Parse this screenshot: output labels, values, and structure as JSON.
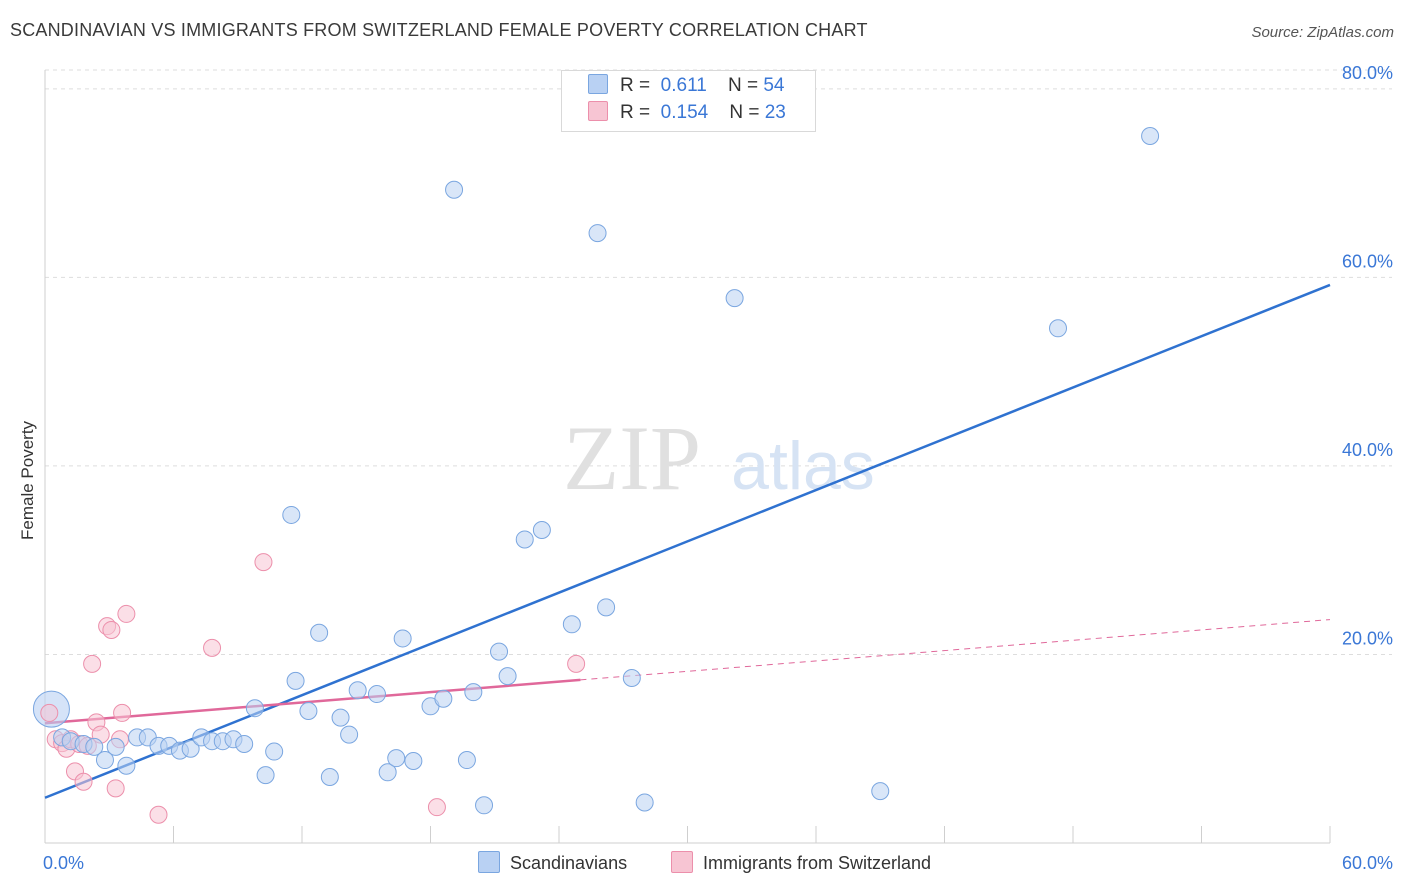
{
  "title": "SCANDINAVIAN VS IMMIGRANTS FROM SWITZERLAND FEMALE POVERTY CORRELATION CHART",
  "source": "Source: ZipAtlas.com",
  "watermark": {
    "zip": "ZIP",
    "atlas": "atlas"
  },
  "legend_top": [
    {
      "r_label": "R =",
      "r_value": "0.611",
      "n_label": "N =",
      "n_value": "54"
    },
    {
      "r_label": "R =",
      "r_value": "0.154",
      "n_label": "N =",
      "n_value": "23"
    }
  ],
  "legend_bottom": [
    "Scandinavians",
    "Immigrants from Switzerland"
  ],
  "colors": {
    "blue_fill": "#b9d1f3",
    "blue_stroke": "#7aa6e0",
    "blue_line": "#2f72d0",
    "pink_fill": "#f7c5d3",
    "pink_stroke": "#ec8fab",
    "pink_line": "#e0689a",
    "axis_text": "#3a77d6",
    "grid": "#dddddd"
  },
  "chart_data": {
    "type": "scatter",
    "title": "SCANDINAVIAN VS IMMIGRANTS FROM SWITZERLAND FEMALE POVERTY CORRELATION CHART",
    "xlabel": "",
    "ylabel": "Female Poverty",
    "xlim": [
      0,
      60
    ],
    "ylim": [
      0,
      82
    ],
    "x_tick_labels": [
      "0.0%",
      "60.0%"
    ],
    "y_ticks": [
      20,
      40,
      60,
      80
    ],
    "y_tick_labels": [
      "20.0%",
      "40.0%",
      "60.0%",
      "80.0%"
    ],
    "grid": true,
    "series": [
      {
        "name": "Scandinavians",
        "color": "#b9d1f3",
        "points": [
          [
            0.3,
            14.2
          ],
          [
            0.8,
            11.2
          ],
          [
            1.2,
            10.8
          ],
          [
            1.8,
            10.5
          ],
          [
            2.3,
            10.2
          ],
          [
            2.8,
            8.8
          ],
          [
            3.3,
            10.2
          ],
          [
            3.8,
            8.2
          ],
          [
            4.3,
            11.2
          ],
          [
            4.8,
            11.2
          ],
          [
            5.3,
            10.3
          ],
          [
            5.8,
            10.3
          ],
          [
            6.3,
            9.8
          ],
          [
            6.8,
            10.0
          ],
          [
            7.3,
            11.2
          ],
          [
            7.8,
            10.8
          ],
          [
            8.3,
            10.8
          ],
          [
            8.8,
            11.0
          ],
          [
            9.3,
            10.5
          ],
          [
            9.8,
            14.3
          ],
          [
            10.3,
            7.2
          ],
          [
            10.7,
            9.7
          ],
          [
            11.5,
            34.8
          ],
          [
            11.7,
            17.2
          ],
          [
            12.3,
            14.0
          ],
          [
            12.8,
            22.3
          ],
          [
            13.3,
            7.0
          ],
          [
            13.8,
            13.3
          ],
          [
            14.2,
            11.5
          ],
          [
            14.6,
            16.2
          ],
          [
            15.5,
            15.8
          ],
          [
            16.0,
            7.5
          ],
          [
            16.4,
            9.0
          ],
          [
            16.7,
            21.7
          ],
          [
            17.2,
            8.7
          ],
          [
            18.0,
            14.5
          ],
          [
            18.6,
            15.3
          ],
          [
            19.1,
            69.3
          ],
          [
            19.7,
            8.8
          ],
          [
            20.0,
            16.0
          ],
          [
            20.5,
            4.0
          ],
          [
            21.2,
            20.3
          ],
          [
            21.6,
            17.7
          ],
          [
            22.4,
            32.2
          ],
          [
            23.2,
            33.2
          ],
          [
            24.6,
            23.2
          ],
          [
            25.8,
            64.7
          ],
          [
            26.2,
            25.0
          ],
          [
            28.0,
            4.3
          ],
          [
            27.4,
            17.5
          ],
          [
            32.2,
            57.8
          ],
          [
            39.0,
            5.5
          ],
          [
            47.3,
            54.6
          ],
          [
            51.6,
            75.0
          ]
        ]
      },
      {
        "name": "Immigrants from Switzerland",
        "color": "#f7c5d3",
        "points": [
          [
            0.2,
            13.8
          ],
          [
            0.5,
            11.0
          ],
          [
            0.8,
            10.6
          ],
          [
            1.0,
            10.0
          ],
          [
            1.2,
            11.0
          ],
          [
            1.4,
            7.6
          ],
          [
            1.6,
            10.5
          ],
          [
            1.8,
            6.5
          ],
          [
            2.0,
            10.3
          ],
          [
            2.2,
            19.0
          ],
          [
            2.4,
            12.8
          ],
          [
            2.6,
            11.5
          ],
          [
            2.9,
            23.0
          ],
          [
            3.1,
            22.6
          ],
          [
            3.3,
            5.8
          ],
          [
            3.5,
            11.0
          ],
          [
            3.6,
            13.8
          ],
          [
            3.8,
            24.3
          ],
          [
            5.3,
            3.0
          ],
          [
            7.8,
            20.7
          ],
          [
            10.2,
            29.8
          ],
          [
            18.3,
            3.8
          ],
          [
            24.8,
            19.0
          ]
        ]
      }
    ],
    "trendlines": [
      {
        "series": "Scandinavians",
        "x": [
          0,
          60
        ],
        "y": [
          4.8,
          59.2
        ],
        "style": "solid"
      },
      {
        "series": "Immigrants from Switzerland",
        "x": [
          0,
          25
        ],
        "y": [
          12.7,
          17.3
        ],
        "style": "solid"
      },
      {
        "series": "Immigrants from Switzerland",
        "x": [
          25,
          60
        ],
        "y": [
          17.3,
          23.7
        ],
        "style": "dashed"
      }
    ]
  }
}
